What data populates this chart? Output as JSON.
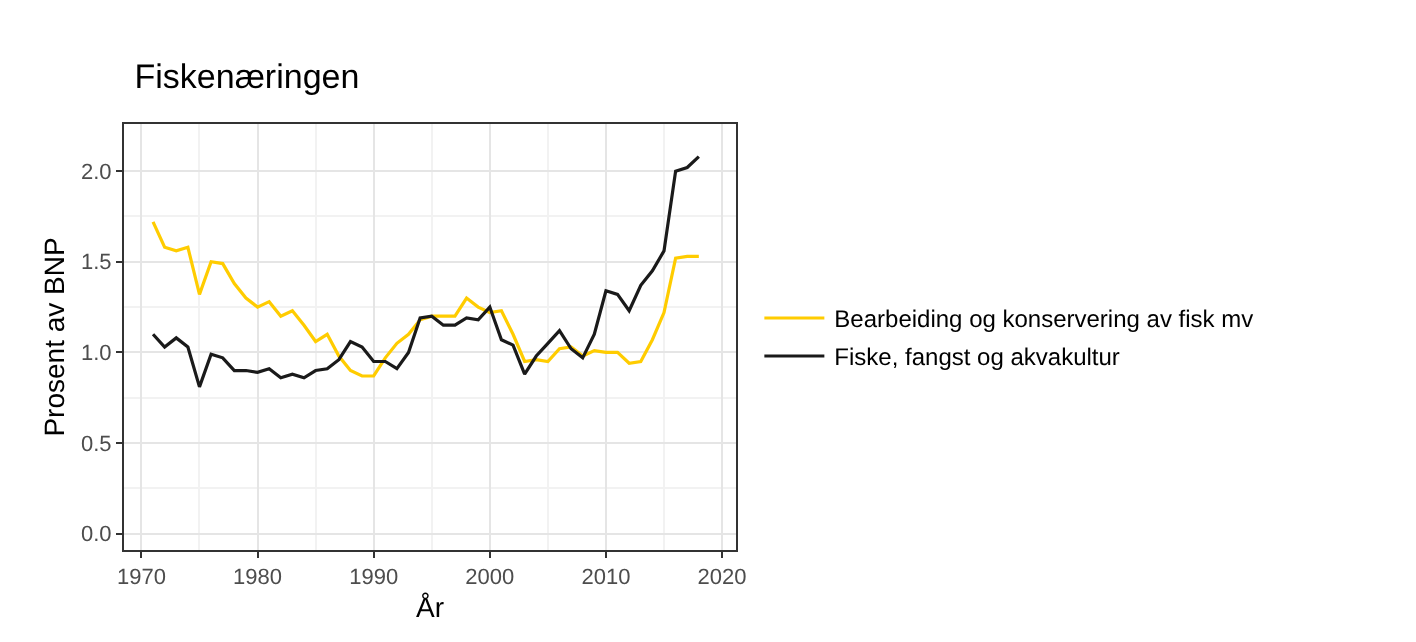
{
  "chart_data": {
    "type": "line",
    "title": "Fiskenæringen",
    "xlabel": "År",
    "ylabel": "Prosent av BNP",
    "x": [
      1971,
      1972,
      1973,
      1974,
      1975,
      1976,
      1977,
      1978,
      1979,
      1980,
      1981,
      1982,
      1983,
      1984,
      1985,
      1986,
      1987,
      1988,
      1989,
      1990,
      1991,
      1992,
      1993,
      1994,
      1995,
      1996,
      1997,
      1998,
      1999,
      2000,
      2001,
      2002,
      2003,
      2004,
      2005,
      2006,
      2007,
      2008,
      2009,
      2010,
      2011,
      2012,
      2013,
      2014,
      2015,
      2016,
      2017,
      2018
    ],
    "series": [
      {
        "name": "Bearbeiding og konservering av fisk mv",
        "color": "#ffcc00",
        "values": [
          1.72,
          1.58,
          1.56,
          1.58,
          1.32,
          1.5,
          1.49,
          1.38,
          1.3,
          1.25,
          1.28,
          1.2,
          1.23,
          1.15,
          1.06,
          1.1,
          0.98,
          0.9,
          0.87,
          0.87,
          0.97,
          1.05,
          1.1,
          1.18,
          1.2,
          1.2,
          1.2,
          1.3,
          1.25,
          1.22,
          1.23,
          1.1,
          0.95,
          0.96,
          0.95,
          1.02,
          1.03,
          0.98,
          1.01,
          1.0,
          1.0,
          0.94,
          0.95,
          1.07,
          1.22,
          1.52,
          1.53,
          1.53
        ]
      },
      {
        "name": "Fiske, fangst og akvakultur",
        "color": "#1a1a1a",
        "values": [
          1.1,
          1.03,
          1.08,
          1.03,
          0.81,
          0.99,
          0.97,
          0.9,
          0.9,
          0.89,
          0.91,
          0.86,
          0.88,
          0.86,
          0.9,
          0.91,
          0.96,
          1.06,
          1.03,
          0.95,
          0.95,
          0.91,
          1.0,
          1.19,
          1.2,
          1.15,
          1.15,
          1.19,
          1.18,
          1.25,
          1.07,
          1.04,
          0.88,
          0.98,
          1.05,
          1.12,
          1.02,
          0.97,
          1.1,
          1.34,
          1.32,
          1.23,
          1.37,
          1.45,
          1.56,
          2.0,
          2.02,
          2.08
        ]
      }
    ],
    "xlim": [
      1968.5,
      2021.2
    ],
    "xticks": [
      1970,
      1980,
      1990,
      2000,
      2010,
      2020
    ],
    "ylim": [
      -0.09,
      2.26
    ],
    "yticks": [
      {
        "value": 0,
        "label": "0.0"
      },
      {
        "value": 0.5,
        "label": "0.5"
      },
      {
        "value": 1,
        "label": "1.0"
      },
      {
        "value": 1.5,
        "label": "1.5"
      },
      {
        "value": 2,
        "label": "2.0"
      }
    ],
    "grid": true,
    "legend": "right",
    "marker": "none",
    "line_style": "solid"
  }
}
